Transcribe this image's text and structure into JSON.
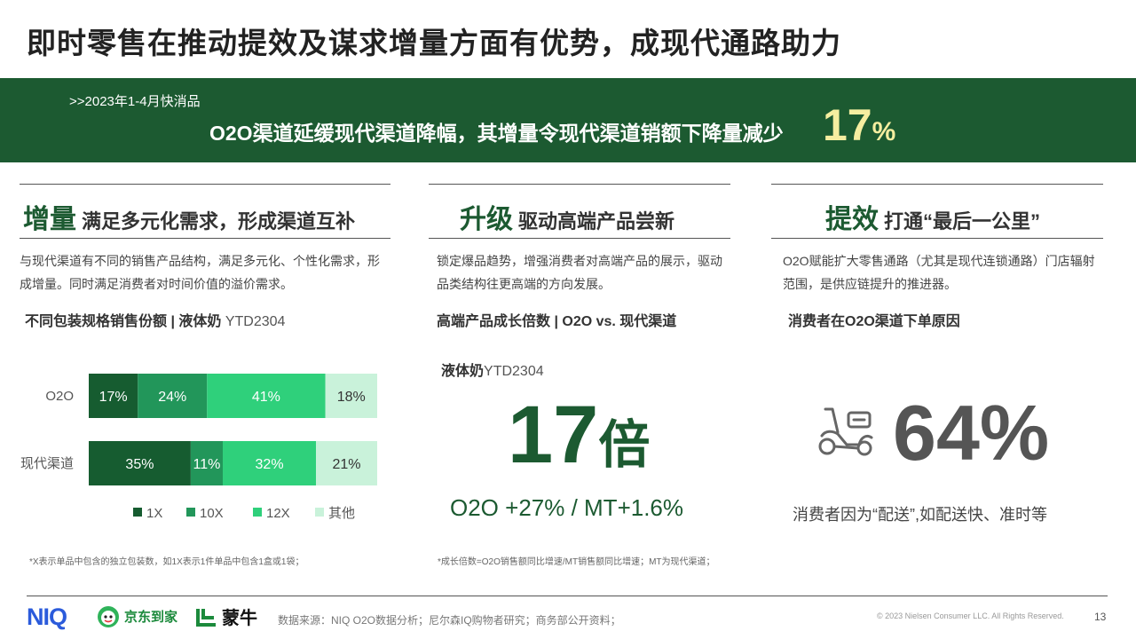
{
  "title": "即时零售在推动提效及谋求增量方面有优势，成现代通路助力",
  "banner": {
    "sub": ">>2023年1-4月快消品",
    "main": "O2O渠道延缓现代渠道降幅，其增量令现代渠道销额下降量减少",
    "pct_number": "17",
    "pct_sign": "%"
  },
  "col1": {
    "head_highlight": "增量",
    "head_rest": "满足多元化需求，形成渠道互补",
    "desc": "与现代渠道有不同的销售产品结构，满足多元化、个性化需求，形成增量。同时满足消费者对时间价值的溢价需求。",
    "chart_title_bold": "不同包装规格销售份额 | 液体奶",
    "chart_title_light": "YTD2304",
    "footnote": "*X表示单品中包含的独立包装数，如1X表示1件单品中包含1盒或1袋；"
  },
  "col2": {
    "head_highlight": "升级",
    "head_rest": "驱动高端产品尝新",
    "desc": "锁定爆品趋势，增强消费者对高端产品的展示，驱动品类结构往更高端的方向发展。",
    "sub_title": "高端产品成长倍数 | O2O vs. 现代渠道",
    "product_bold": "液体奶",
    "product_light": "YTD2304",
    "big_number": "17",
    "big_unit": "倍",
    "growth": "O2O +27% / MT+1.6%",
    "footnote": "*成长倍数=O2O销售额同比增速/MT销售额同比增速；MT为现代渠道；"
  },
  "col3": {
    "head_highlight": "提效",
    "head_rest": "打通“最后一公里”",
    "desc": "O2O赋能扩大零售通路（尤其是现代连锁通路）门店辐射范围，是供应链提升的推进器。",
    "sub_title": "消费者在O2O渠道下单原因",
    "big_number": "64%",
    "reason": "消费者因为“配送”,如配送快、准时等",
    "icon": "scooter-icon"
  },
  "chart_data": {
    "type": "bar",
    "orientation": "horizontal",
    "stacked": true,
    "normalized": true,
    "categories": [
      "O2O",
      "现代渠道"
    ],
    "series": [
      {
        "name": "1X",
        "values": [
          17,
          35
        ],
        "labels": [
          "17%",
          "35%"
        ],
        "color": "#165c30"
      },
      {
        "name": "10X",
        "values": [
          24,
          11
        ],
        "labels": [
          "24%",
          "11%"
        ],
        "color": "#22965a"
      },
      {
        "name": "12X",
        "values": [
          41,
          32
        ],
        "labels": [
          "41%",
          "32%"
        ],
        "color": "#2fd07b"
      },
      {
        "name": "其他",
        "values": [
          18,
          21
        ],
        "labels": [
          "18%",
          "21%"
        ],
        "color": "#c9f2da"
      }
    ],
    "legend": "bottom",
    "grid": false
  },
  "footer": {
    "logo_niq": "NIQ",
    "logo_jd": "京东到家",
    "logo_mn": "蒙牛",
    "source": "数据来源：NIQ O2O数据分析；尼尔森IQ购物者研究；商务部公开资料；",
    "copyright": "© 2023 Nielsen Consumer LLC. All Rights Reserved.",
    "page": "13"
  }
}
